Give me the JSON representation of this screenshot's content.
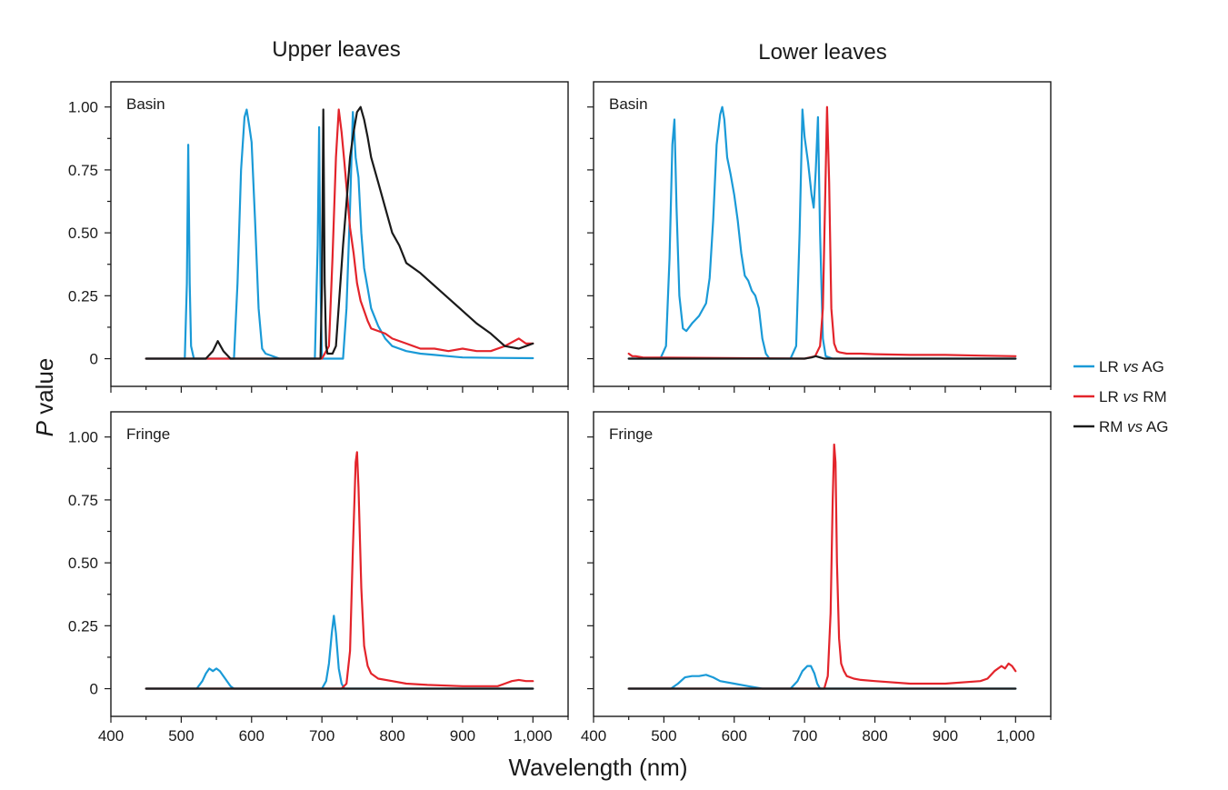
{
  "figure": {
    "x_axis_title": "Wavelength (nm)",
    "y_axis_title": {
      "italic": "P",
      "rest": " value"
    }
  },
  "legend": [
    {
      "key": "LR_vs_AG",
      "a": "LR ",
      "vs": "vs",
      "b": " AG",
      "color": "#1a9ad7"
    },
    {
      "key": "LR_vs_RM",
      "a": "LR ",
      "vs": "vs",
      "b": " RM",
      "color": "#e3242b"
    },
    {
      "key": "RM_vs_AG",
      "a": "RM ",
      "vs": "vs",
      "b": " AG",
      "color": "#1a1a1a"
    }
  ],
  "chart_data": [
    {
      "type": "line",
      "column_title": "Upper leaves",
      "label": "Basin",
      "xlabel": "Wavelength (nm)",
      "ylabel": "P value",
      "xlim": [
        400,
        1050
      ],
      "ylim": [
        -0.11,
        1.1
      ],
      "x_ticks": [
        400,
        500,
        600,
        700,
        800,
        900,
        1000
      ],
      "x_tick_labels": [
        "400",
        "500",
        "600",
        "700",
        "800",
        "900",
        "1,000"
      ],
      "y_ticks": [
        0,
        0.25,
        0.5,
        0.75,
        1.0
      ],
      "y_tick_labels": [
        "0",
        "0.25",
        "0.50",
        "0.75",
        "1.00"
      ],
      "series": [
        {
          "name": "LR vs AG",
          "color": "#1a9ad7",
          "x": [
            450,
            505,
            508,
            510,
            512,
            514,
            518,
            575,
            580,
            585,
            590,
            593,
            597,
            600,
            605,
            610,
            615,
            620,
            640,
            690,
            694,
            696,
            698,
            700,
            730,
            735,
            740,
            744,
            748,
            752,
            756,
            760,
            765,
            770,
            780,
            790,
            800,
            820,
            840,
            860,
            880,
            900,
            950,
            1000
          ],
          "y": [
            0,
            0,
            0.3,
            0.85,
            0.3,
            0.05,
            0,
            0,
            0.3,
            0.75,
            0.96,
            0.99,
            0.92,
            0.86,
            0.55,
            0.2,
            0.04,
            0.02,
            0,
            0,
            0.45,
            0.92,
            0.3,
            0,
            0,
            0.2,
            0.6,
            0.98,
            0.8,
            0.72,
            0.5,
            0.36,
            0.28,
            0.2,
            0.13,
            0.08,
            0.05,
            0.03,
            0.02,
            0.015,
            0.01,
            0.005,
            0.003,
            0.002
          ]
        },
        {
          "name": "LR vs RM",
          "color": "#e3242b",
          "x": [
            450,
            700,
            710,
            715,
            720,
            724,
            728,
            732,
            736,
            740,
            745,
            750,
            755,
            760,
            765,
            770,
            780,
            790,
            800,
            820,
            840,
            860,
            880,
            900,
            920,
            940,
            960,
            980,
            990,
            1000
          ],
          "y": [
            0,
            0,
            0.05,
            0.4,
            0.8,
            0.99,
            0.9,
            0.78,
            0.65,
            0.52,
            0.42,
            0.3,
            0.23,
            0.19,
            0.15,
            0.12,
            0.11,
            0.1,
            0.08,
            0.06,
            0.04,
            0.04,
            0.03,
            0.04,
            0.03,
            0.03,
            0.05,
            0.08,
            0.06,
            0.06
          ]
        },
        {
          "name": "RM vs AG",
          "color": "#1a1a1a",
          "x": [
            450,
            535,
            545,
            552,
            560,
            570,
            698,
            700,
            702,
            704,
            706,
            708,
            715,
            720,
            725,
            730,
            735,
            740,
            745,
            750,
            755,
            760,
            765,
            770,
            780,
            790,
            800,
            810,
            820,
            840,
            860,
            880,
            900,
            920,
            940,
            960,
            980,
            1000
          ],
          "y": [
            0,
            0,
            0.03,
            0.07,
            0.03,
            0,
            0,
            0.3,
            0.99,
            0.3,
            0.05,
            0.02,
            0.02,
            0.05,
            0.25,
            0.45,
            0.62,
            0.8,
            0.9,
            0.98,
            1.0,
            0.95,
            0.88,
            0.8,
            0.7,
            0.6,
            0.5,
            0.45,
            0.38,
            0.34,
            0.29,
            0.24,
            0.19,
            0.14,
            0.1,
            0.05,
            0.04,
            0.06
          ]
        }
      ]
    },
    {
      "type": "line",
      "column_title": "Lower leaves",
      "label": "Basin",
      "xlabel": "Wavelength (nm)",
      "ylabel": "P value",
      "xlim": [
        400,
        1050
      ],
      "ylim": [
        -0.11,
        1.1
      ],
      "x_ticks": [
        400,
        500,
        600,
        700,
        800,
        900,
        1000
      ],
      "x_tick_labels": [
        "400",
        "500",
        "600",
        "700",
        "800",
        "900",
        "1,000"
      ],
      "y_ticks": [
        0,
        0.25,
        0.5,
        0.75,
        1.0
      ],
      "y_tick_labels": [
        "0",
        "0.25",
        "0.50",
        "0.75",
        "1.00"
      ],
      "series": [
        {
          "name": "LR vs AG",
          "color": "#1a9ad7",
          "x": [
            450,
            495,
            503,
            508,
            512,
            515,
            518,
            522,
            527,
            532,
            540,
            550,
            560,
            565,
            570,
            575,
            580,
            583,
            586,
            590,
            595,
            600,
            605,
            610,
            615,
            620,
            625,
            630,
            635,
            640,
            645,
            650,
            680,
            688,
            693,
            697,
            700,
            705,
            710,
            713,
            716,
            719,
            722,
            726,
            730,
            740,
            1000
          ],
          "y": [
            0,
            0,
            0.05,
            0.4,
            0.85,
            0.95,
            0.6,
            0.25,
            0.12,
            0.11,
            0.14,
            0.17,
            0.22,
            0.32,
            0.55,
            0.85,
            0.97,
            1.0,
            0.95,
            0.8,
            0.73,
            0.65,
            0.55,
            0.42,
            0.33,
            0.31,
            0.27,
            0.25,
            0.2,
            0.08,
            0.02,
            0,
            0,
            0.05,
            0.5,
            0.99,
            0.88,
            0.78,
            0.65,
            0.6,
            0.75,
            0.96,
            0.5,
            0.08,
            0.01,
            0,
            0
          ]
        },
        {
          "name": "LR vs RM",
          "color": "#e3242b",
          "x": [
            450,
            455,
            460,
            470,
            700,
            715,
            722,
            726,
            729,
            732,
            735,
            738,
            742,
            746,
            750,
            760,
            780,
            800,
            850,
            900,
            950,
            1000
          ],
          "y": [
            0.02,
            0.01,
            0.01,
            0.005,
            0,
            0.01,
            0.05,
            0.2,
            0.6,
            1.0,
            0.7,
            0.2,
            0.06,
            0.03,
            0.025,
            0.02,
            0.02,
            0.018,
            0.015,
            0.015,
            0.012,
            0.01
          ]
        },
        {
          "name": "RM vs AG",
          "color": "#1a1a1a",
          "x": [
            450,
            700,
            710,
            716,
            722,
            728,
            1000
          ],
          "y": [
            0,
            0,
            0.005,
            0.01,
            0.005,
            0,
            0
          ]
        }
      ]
    },
    {
      "type": "line",
      "column_title": "Upper leaves",
      "label": "Fringe",
      "xlabel": "Wavelength (nm)",
      "ylabel": "P value",
      "xlim": [
        400,
        1050
      ],
      "ylim": [
        -0.11,
        1.1
      ],
      "x_ticks": [
        400,
        500,
        600,
        700,
        800,
        900,
        1000
      ],
      "x_tick_labels": [
        "400",
        "500",
        "600",
        "700",
        "800",
        "900",
        "1,000"
      ],
      "y_ticks": [
        0,
        0.25,
        0.5,
        0.75,
        1.0
      ],
      "y_tick_labels": [
        "0",
        "0.25",
        "0.50",
        "0.75",
        "1.00"
      ],
      "series": [
        {
          "name": "LR vs AG",
          "color": "#1a9ad7",
          "x": [
            450,
            522,
            530,
            535,
            540,
            545,
            550,
            555,
            560,
            565,
            570,
            575,
            700,
            706,
            710,
            714,
            717,
            720,
            724,
            728,
            732,
            1000
          ],
          "y": [
            0,
            0,
            0.03,
            0.06,
            0.08,
            0.07,
            0.08,
            0.07,
            0.05,
            0.03,
            0.01,
            0,
            0,
            0.03,
            0.1,
            0.22,
            0.29,
            0.22,
            0.08,
            0.02,
            0,
            0
          ]
        },
        {
          "name": "LR vs RM",
          "color": "#e3242b",
          "x": [
            450,
            728,
            735,
            740,
            744,
            748,
            750,
            752,
            756,
            760,
            765,
            770,
            780,
            800,
            820,
            850,
            900,
            950,
            960,
            970,
            980,
            990,
            1000
          ],
          "y": [
            0,
            0,
            0.02,
            0.15,
            0.55,
            0.9,
            0.94,
            0.8,
            0.4,
            0.17,
            0.09,
            0.06,
            0.04,
            0.03,
            0.02,
            0.015,
            0.01,
            0.01,
            0.02,
            0.03,
            0.035,
            0.03,
            0.03
          ]
        },
        {
          "name": "RM vs AG",
          "color": "#1a1a1a",
          "x": [
            450,
            1000
          ],
          "y": [
            0,
            0
          ]
        }
      ]
    },
    {
      "type": "line",
      "column_title": "Lower leaves",
      "label": "Fringe",
      "xlabel": "Wavelength (nm)",
      "ylabel": "P value",
      "xlim": [
        400,
        1050
      ],
      "ylim": [
        -0.11,
        1.1
      ],
      "x_ticks": [
        400,
        500,
        600,
        700,
        800,
        900,
        1000
      ],
      "x_tick_labels": [
        "400",
        "500",
        "600",
        "700",
        "800",
        "900",
        "1,000"
      ],
      "y_ticks": [
        0,
        0.25,
        0.5,
        0.75,
        1.0
      ],
      "y_tick_labels": [
        "0",
        "0.25",
        "0.50",
        "0.75",
        "1.00"
      ],
      "series": [
        {
          "name": "LR vs AG",
          "color": "#1a9ad7",
          "x": [
            450,
            510,
            520,
            530,
            540,
            550,
            560,
            570,
            580,
            600,
            620,
            640,
            680,
            690,
            697,
            704,
            709,
            714,
            718,
            722,
            1000
          ],
          "y": [
            0,
            0,
            0.02,
            0.045,
            0.05,
            0.05,
            0.055,
            0.045,
            0.03,
            0.02,
            0.01,
            0,
            0,
            0.03,
            0.07,
            0.09,
            0.09,
            0.06,
            0.02,
            0,
            0
          ]
        },
        {
          "name": "LR vs RM",
          "color": "#e3242b",
          "x": [
            450,
            728,
            733,
            737,
            740,
            742,
            744,
            746,
            749,
            752,
            756,
            760,
            770,
            780,
            800,
            850,
            900,
            950,
            960,
            970,
            980,
            985,
            990,
            995,
            1000
          ],
          "y": [
            0,
            0,
            0.05,
            0.3,
            0.75,
            0.97,
            0.9,
            0.5,
            0.2,
            0.1,
            0.07,
            0.05,
            0.04,
            0.035,
            0.03,
            0.02,
            0.02,
            0.03,
            0.04,
            0.07,
            0.09,
            0.08,
            0.1,
            0.09,
            0.07
          ]
        },
        {
          "name": "RM vs AG",
          "color": "#1a1a1a",
          "x": [
            450,
            1000
          ],
          "y": [
            0,
            0
          ]
        }
      ]
    }
  ]
}
